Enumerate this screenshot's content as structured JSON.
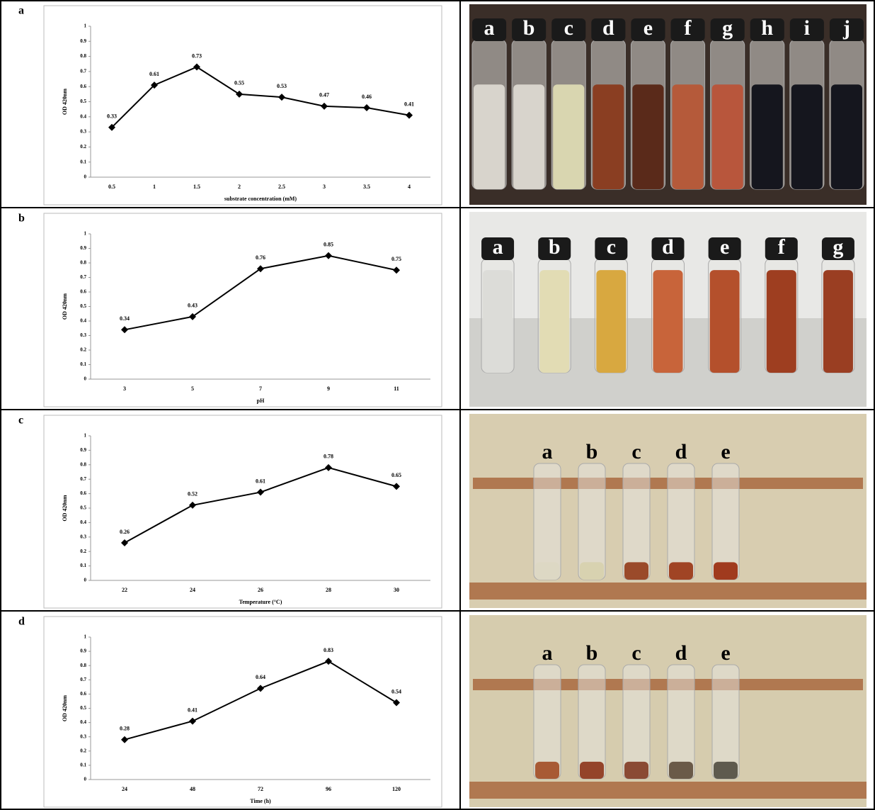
{
  "panels": [
    "a",
    "b",
    "c",
    "d"
  ],
  "chart_data": [
    {
      "type": "line",
      "categories": [
        "0.5",
        "1",
        "1.5",
        "2",
        "2.5",
        "3",
        "3.5",
        "4"
      ],
      "values": [
        0.33,
        0.61,
        0.73,
        0.55,
        0.53,
        0.47,
        0.46,
        0.41
      ],
      "color": "#000000",
      "ylim": [
        0,
        1
      ],
      "yticks": [
        0,
        0.1,
        0.2,
        0.3,
        0.4,
        0.5,
        0.6,
        0.7,
        0.8,
        0.9,
        1
      ],
      "x_label": "substrate concentration (mM)",
      "y_label": "OD 420nm"
    },
    {
      "type": "line",
      "categories": [
        "3",
        "5",
        "7",
        "9",
        "11"
      ],
      "values": [
        0.34,
        0.43,
        0.76,
        0.85,
        0.75
      ],
      "color": "#000000",
      "ylim": [
        0,
        1
      ],
      "yticks": [
        0,
        0.1,
        0.2,
        0.3,
        0.4,
        0.5,
        0.6,
        0.7,
        0.8,
        0.9,
        1
      ],
      "x_label": "pH",
      "y_label": "OD 420nm"
    },
    {
      "type": "line",
      "categories": [
        "22",
        "24",
        "26",
        "28",
        "30"
      ],
      "values": [
        0.26,
        0.52,
        0.61,
        0.78,
        0.65
      ],
      "color": "#000000",
      "ylim": [
        0,
        1
      ],
      "yticks": [
        0,
        0.1,
        0.2,
        0.3,
        0.4,
        0.5,
        0.6,
        0.7,
        0.8,
        0.9,
        1
      ],
      "x_label": "Temperature (°C)",
      "y_label": "OD 420nm"
    },
    {
      "type": "line",
      "categories": [
        "24",
        "48",
        "72",
        "96",
        "120"
      ],
      "values": [
        0.28,
        0.41,
        0.64,
        0.83,
        0.54
      ],
      "color": "#000000",
      "ylim": [
        0,
        1
      ],
      "yticks": [
        0,
        0.1,
        0.2,
        0.3,
        0.4,
        0.5,
        0.6,
        0.7,
        0.8,
        0.9,
        1
      ],
      "x_label": "Time (h)",
      "y_label": "OD 420nm"
    }
  ],
  "photos": [
    {
      "labels": [
        "a",
        "b",
        "c",
        "d",
        "e",
        "f",
        "g",
        "h",
        "i",
        "j"
      ]
    },
    {
      "labels": [
        "a",
        "b",
        "c",
        "d",
        "e",
        "f",
        "g"
      ]
    },
    {
      "labels": [
        "a",
        "b",
        "c",
        "d",
        "e"
      ]
    },
    {
      "labels": [
        "a",
        "b",
        "c",
        "d",
        "e"
      ]
    }
  ]
}
